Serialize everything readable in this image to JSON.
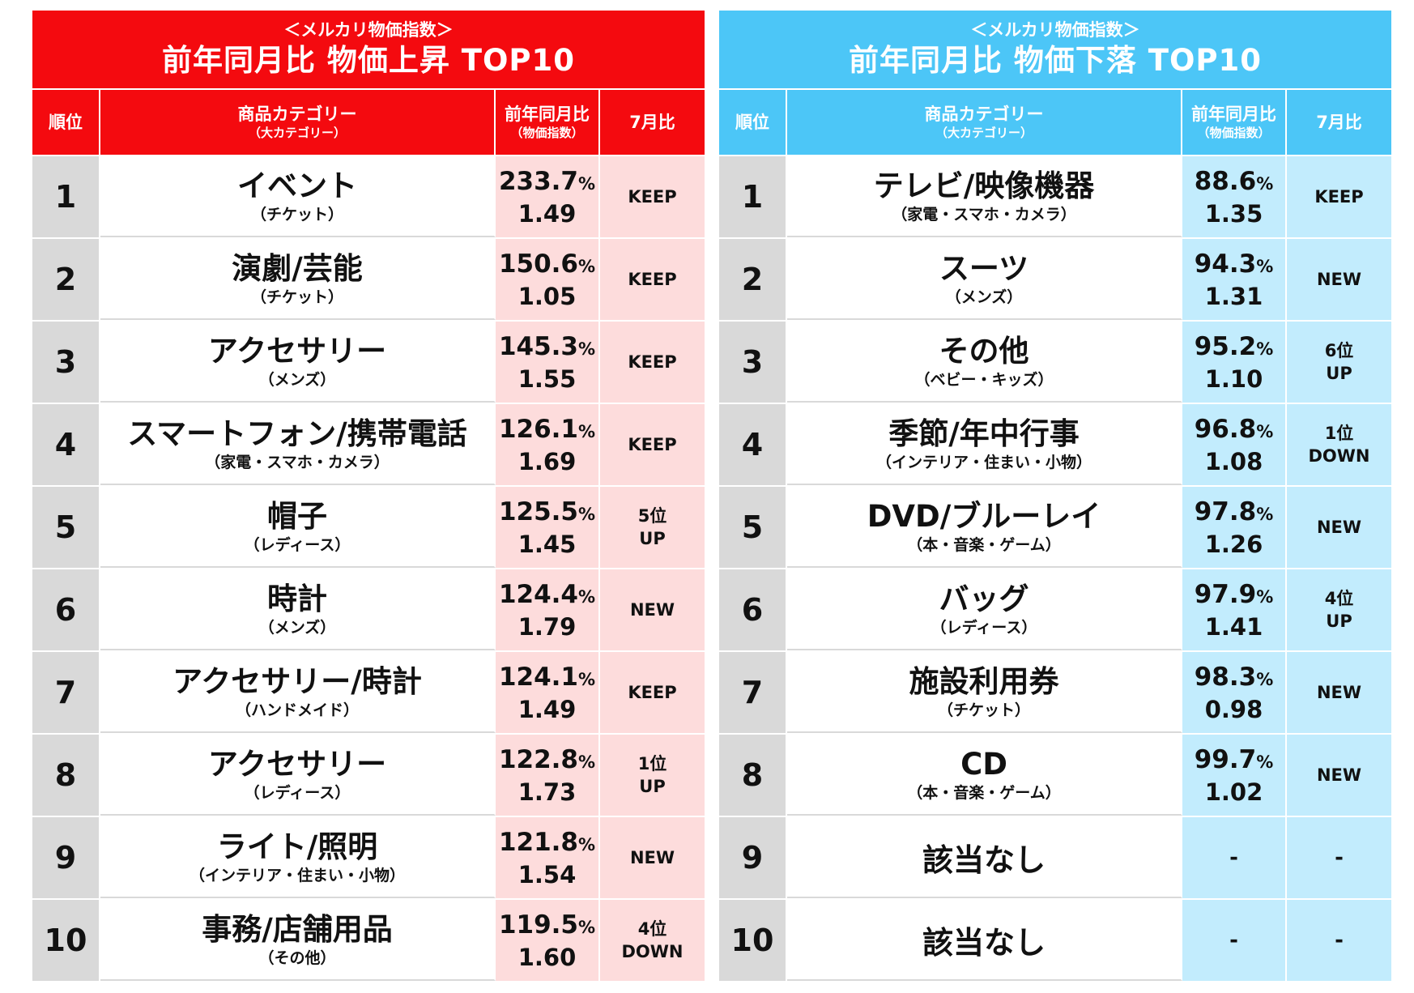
{
  "left": {
    "subtitle": "＜メルカリ物価指数＞",
    "title": "前年同月比 物価上昇 TOP10",
    "headers": {
      "rank": "順位",
      "category": "商品カテゴリー",
      "category_sub": "（大カテゴリー）",
      "yoy": "前年同月比",
      "yoy_sub": "（物価指数）",
      "vs_july": "7月比"
    },
    "rows": [
      {
        "rank": "1",
        "category": "イベント",
        "sub": "（チケット）",
        "pct": "233.7",
        "idx": "1.49",
        "change": "KEEP"
      },
      {
        "rank": "2",
        "category": "演劇/芸能",
        "sub": "（チケット）",
        "pct": "150.6",
        "idx": "1.05",
        "change": "KEEP"
      },
      {
        "rank": "3",
        "category": "アクセサリー",
        "sub": "（メンズ）",
        "pct": "145.3",
        "idx": "1.55",
        "change": "KEEP"
      },
      {
        "rank": "4",
        "category": "スマートフォン/携帯電話",
        "sub": "（家電・スマホ・カメラ）",
        "pct": "126.1",
        "idx": "1.69",
        "change": "KEEP"
      },
      {
        "rank": "5",
        "category": "帽子",
        "sub": "（レディース）",
        "pct": "125.5",
        "idx": "1.45",
        "change": "5位\nUP"
      },
      {
        "rank": "6",
        "category": "時計",
        "sub": "（メンズ）",
        "pct": "124.4",
        "idx": "1.79",
        "change": "NEW"
      },
      {
        "rank": "7",
        "category": "アクセサリー/時計",
        "sub": "（ハンドメイド）",
        "pct": "124.1",
        "idx": "1.49",
        "change": "KEEP"
      },
      {
        "rank": "8",
        "category": "アクセサリー",
        "sub": "（レディース）",
        "pct": "122.8",
        "idx": "1.73",
        "change": "1位\nUP"
      },
      {
        "rank": "9",
        "category": "ライト/照明",
        "sub": "（インテリア・住まい・小物）",
        "pct": "121.8",
        "idx": "1.54",
        "change": "NEW"
      },
      {
        "rank": "10",
        "category": "事務/店舗用品",
        "sub": "（その他）",
        "pct": "119.5",
        "idx": "1.60",
        "change": "4位\nDOWN"
      }
    ]
  },
  "right": {
    "subtitle": "＜メルカリ物価指数＞",
    "title": "前年同月比 物価下落 TOP10",
    "headers": {
      "rank": "順位",
      "category": "商品カテゴリー",
      "category_sub": "（大カテゴリー）",
      "yoy": "前年同月比",
      "yoy_sub": "（物価指数）",
      "vs_july": "7月比"
    },
    "rows": [
      {
        "rank": "1",
        "category": "テレビ/映像機器",
        "sub": "（家電・スマホ・カメラ）",
        "pct": "88.6",
        "idx": "1.35",
        "change": "KEEP"
      },
      {
        "rank": "2",
        "category": "スーツ",
        "sub": "（メンズ）",
        "pct": "94.3",
        "idx": "1.31",
        "change": "NEW"
      },
      {
        "rank": "3",
        "category": "その他",
        "sub": "（ベビー・キッズ）",
        "pct": "95.2",
        "idx": "1.10",
        "change": "6位\nUP"
      },
      {
        "rank": "4",
        "category": "季節/年中行事",
        "sub": "（インテリア・住まい・小物）",
        "pct": "96.8",
        "idx": "1.08",
        "change": "1位\nDOWN"
      },
      {
        "rank": "5",
        "category": "DVD/ブルーレイ",
        "sub": "（本・音楽・ゲーム）",
        "pct": "97.8",
        "idx": "1.26",
        "change": "NEW"
      },
      {
        "rank": "6",
        "category": "バッグ",
        "sub": "（レディース）",
        "pct": "97.9",
        "idx": "1.41",
        "change": "4位\nUP"
      },
      {
        "rank": "7",
        "category": "施設利用券",
        "sub": "（チケット）",
        "pct": "98.3",
        "idx": "0.98",
        "change": "NEW"
      },
      {
        "rank": "8",
        "category": "CD",
        "sub": "（本・音楽・ゲーム）",
        "pct": "99.7",
        "idx": "1.02",
        "change": "NEW"
      },
      {
        "rank": "9",
        "category": "該当なし",
        "sub": "",
        "pct": "",
        "idx": "",
        "change": "-",
        "dash": "-"
      },
      {
        "rank": "10",
        "category": "該当なし",
        "sub": "",
        "pct": "",
        "idx": "",
        "change": "-",
        "dash": "-"
      }
    ]
  },
  "percent_sign": "%",
  "colors": {
    "rise_accent": "#f40a0f",
    "rise_light": "#fddcdc",
    "fall_accent": "#4cc6f7",
    "fall_light": "#c2ecfd",
    "rank_bg": "#d9d9d9"
  }
}
